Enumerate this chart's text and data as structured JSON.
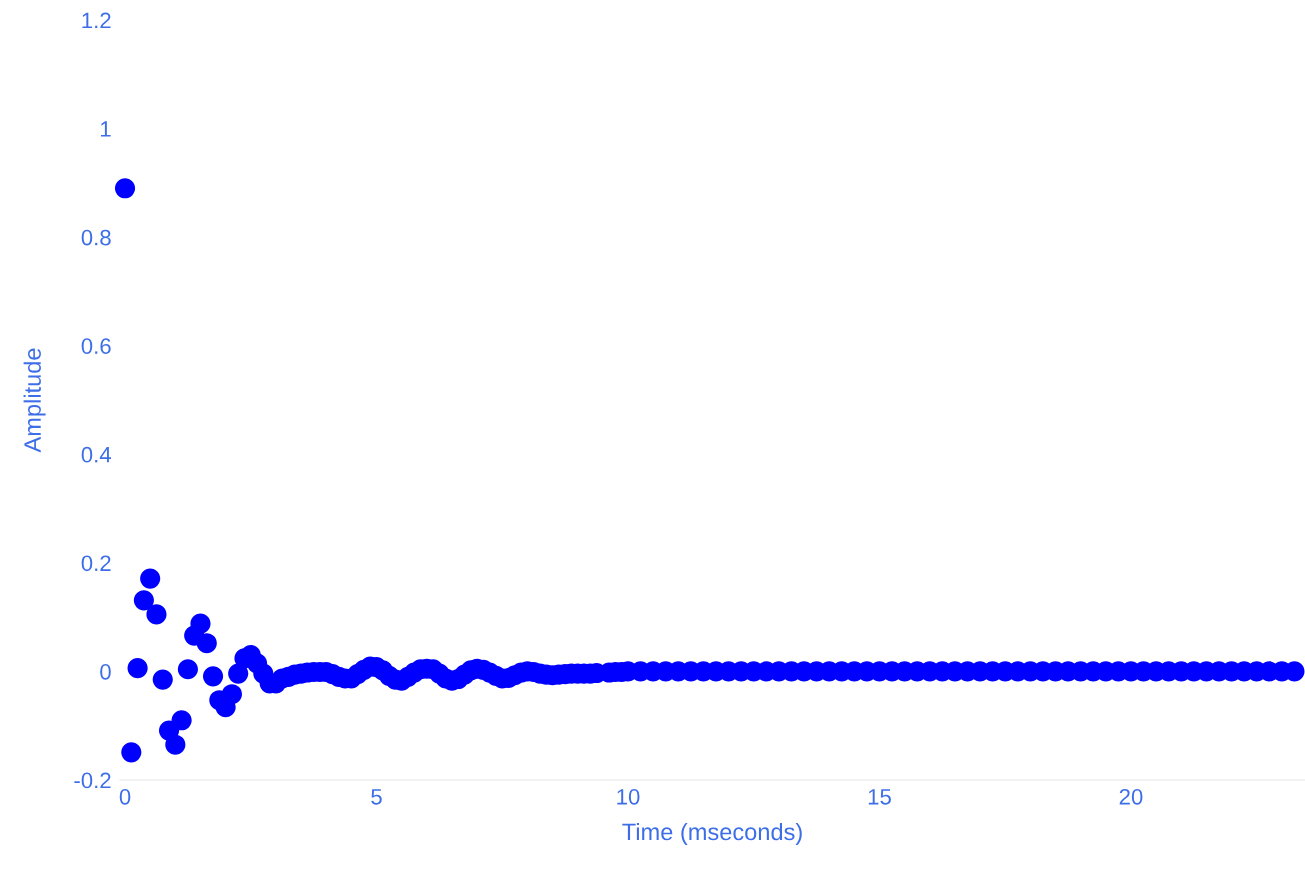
{
  "chart_data": {
    "type": "scatter",
    "xlabel": "Time (mseconds)",
    "ylabel": "Amplitude",
    "xlim": [
      -0.1,
      23.46
    ],
    "ylim": [
      -0.2,
      1.2
    ],
    "xticks": [
      0,
      5,
      10,
      15,
      20
    ],
    "yticks": [
      -0.2,
      0,
      0.2,
      0.4,
      0.6,
      0.8,
      1,
      1.2
    ],
    "grid": false,
    "legend": false,
    "marker": "circle",
    "series": [
      {
        "color": "#0000ff",
        "x": [
          0,
          0.125,
          0.25,
          0.375,
          0.5,
          0.625,
          0.75,
          0.875,
          1,
          1.125,
          1.25,
          1.375,
          1.5,
          1.625,
          1.75,
          1.875,
          2,
          2.125,
          2.25,
          2.375,
          2.5,
          2.625,
          2.75,
          2.875,
          3,
          3.125,
          3.25,
          3.375,
          3.5,
          3.625,
          3.75,
          3.875,
          4,
          4.125,
          4.25,
          4.375,
          4.5,
          4.625,
          4.75,
          4.875,
          5,
          5.125,
          5.25,
          5.375,
          5.5,
          5.625,
          5.75,
          5.875,
          6,
          6.125,
          6.25,
          6.375,
          6.5,
          6.625,
          6.75,
          6.875,
          7,
          7.125,
          7.25,
          7.375,
          7.5,
          7.625,
          7.75,
          7.875,
          8,
          8.125,
          8.25,
          8.375,
          8.5,
          8.625,
          8.75,
          8.875,
          9,
          9.125,
          9.25,
          9.375,
          9.5,
          9.625,
          9.75,
          9.875,
          10,
          10.25,
          10.5,
          10.75,
          11,
          11.25,
          11.5,
          11.75,
          12,
          12.25,
          12.5,
          12.75,
          13,
          13.25,
          13.5,
          13.75,
          14,
          14.25,
          14.5,
          14.75,
          15,
          15.25,
          15.5,
          15.75,
          16,
          16.25,
          16.5,
          16.75,
          17,
          17.25,
          17.5,
          17.75,
          18,
          18.25,
          18.5,
          18.75,
          19,
          19.25,
          19.5,
          19.75,
          20,
          20.25,
          20.5,
          20.75,
          21,
          21.25,
          21.5,
          21.75,
          22,
          22.25,
          22.5,
          22.75,
          23,
          23.25
        ],
        "values": [
          0.89,
          -0.149,
          0.006,
          0.131,
          0.171,
          0.105,
          -0.015,
          -0.109,
          -0.135,
          -0.09,
          0.004,
          0.066,
          0.088,
          0.052,
          -0.009,
          -0.053,
          -0.066,
          -0.042,
          -0.004,
          0.024,
          0.03,
          0.015,
          -0.004,
          -0.022,
          -0.022,
          -0.013,
          -0.01,
          -0.006,
          -0.004,
          -0.002,
          -0.001,
          -0.001,
          -0.001,
          -0.005,
          -0.01,
          -0.013,
          -0.013,
          -0.005,
          0.003,
          0.009,
          0.008,
          0.002,
          -0.008,
          -0.015,
          -0.017,
          -0.01,
          -0.002,
          0.004,
          0.005,
          0.004,
          -0.004,
          -0.013,
          -0.017,
          -0.014,
          -0.006,
          0.002,
          0.005,
          0.003,
          -0.002,
          -0.008,
          -0.013,
          -0.012,
          -0.007,
          -0.002,
          0,
          -0.001,
          -0.004,
          -0.006,
          -0.007,
          -0.006,
          -0.005,
          -0.004,
          -0.004,
          -0.004,
          -0.004,
          -0.003,
          null,
          -0.002,
          -0.001,
          -0.001,
          0,
          0,
          0,
          0,
          0,
          0,
          0,
          0,
          0,
          0,
          0,
          0,
          0,
          0,
          0,
          0,
          0,
          0,
          0,
          0,
          0,
          0,
          0,
          0,
          0,
          0,
          0,
          0,
          0,
          0,
          0,
          0,
          0,
          0,
          0,
          0,
          0,
          0,
          0,
          0,
          0,
          0,
          0,
          0,
          0,
          0,
          0,
          0,
          0,
          0,
          0,
          0,
          0,
          0
        ]
      }
    ]
  }
}
